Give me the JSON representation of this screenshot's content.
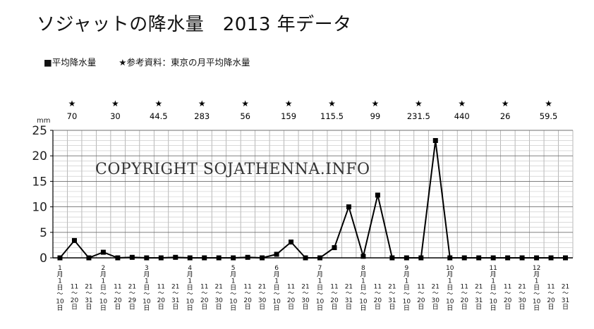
{
  "title": "ソジャットの降水量　2013 年データ",
  "legend": {
    "series_label": "■平均降水量",
    "reference_label": "★参考資料：東京の月平均降水量"
  },
  "watermark": "COPYRIGHT SOJATHENNA.INFO",
  "colors": {
    "line": "#000000",
    "grid": "#9a9a9a",
    "axis": "#000000"
  },
  "chart_data": {
    "type": "line",
    "ylabel": "mm",
    "ylim": [
      0,
      25
    ],
    "yticks": [
      0,
      5,
      10,
      15,
      20,
      25
    ],
    "grid": true,
    "x": [
      "1月1日～10日",
      "1月11日～20日",
      "1月21日～31日",
      "2月1日～10日",
      "2月11日～20日",
      "2月21日～29日",
      "3月1日～10日",
      "3月11日～20日",
      "3月21日～31日",
      "4月1日～10日",
      "4月11日～20日",
      "4月21日～30日",
      "5月1日～10日",
      "5月11日～20日",
      "5月21日～30日",
      "6月1日～10日",
      "6月11日～20日",
      "6月21日～30日",
      "7月1日～10日",
      "7月11日～20日",
      "7月21日～31日",
      "8月1日～10日",
      "8月11日～20日",
      "8月21日～31日",
      "9月1日～10日",
      "9月11日～20日",
      "9月21日～30日",
      "10月1日～10日",
      "10月11日～20日",
      "10月21日～31日",
      "11月1日～10日",
      "11月11日～20日",
      "11月21日～30日",
      "12月1日～10日",
      "12月11日～20日",
      "12月21日～31日"
    ],
    "tick_labels": [
      {
        "month": "1",
        "start": "1",
        "end": "10"
      },
      {
        "month": "",
        "start": "11",
        "end": "20"
      },
      {
        "month": "",
        "start": "21",
        "end": "31"
      },
      {
        "month": "2",
        "start": "1",
        "end": "10"
      },
      {
        "month": "",
        "start": "11",
        "end": "20"
      },
      {
        "month": "",
        "start": "21",
        "end": "29"
      },
      {
        "month": "3",
        "start": "1",
        "end": "10"
      },
      {
        "month": "",
        "start": "11",
        "end": "20"
      },
      {
        "month": "",
        "start": "21",
        "end": "31"
      },
      {
        "month": "4",
        "start": "1",
        "end": "10"
      },
      {
        "month": "",
        "start": "11",
        "end": "20"
      },
      {
        "month": "",
        "start": "21",
        "end": "30"
      },
      {
        "month": "5",
        "start": "1",
        "end": "10"
      },
      {
        "month": "",
        "start": "11",
        "end": "20"
      },
      {
        "month": "",
        "start": "21",
        "end": "30"
      },
      {
        "month": "6",
        "start": "1",
        "end": "10"
      },
      {
        "month": "",
        "start": "11",
        "end": "20"
      },
      {
        "month": "",
        "start": "21",
        "end": "30"
      },
      {
        "month": "7",
        "start": "1",
        "end": "10"
      },
      {
        "month": "",
        "start": "11",
        "end": "20"
      },
      {
        "month": "",
        "start": "21",
        "end": "31"
      },
      {
        "month": "8",
        "start": "1",
        "end": "10"
      },
      {
        "month": "",
        "start": "11",
        "end": "20"
      },
      {
        "month": "",
        "start": "21",
        "end": "31"
      },
      {
        "month": "9",
        "start": "1",
        "end": "10"
      },
      {
        "month": "",
        "start": "11",
        "end": "20"
      },
      {
        "month": "",
        "start": "21",
        "end": "30"
      },
      {
        "month": "10",
        "start": "1",
        "end": "10"
      },
      {
        "month": "",
        "start": "11",
        "end": "20"
      },
      {
        "month": "",
        "start": "21",
        "end": "31"
      },
      {
        "month": "11",
        "start": "1",
        "end": "10"
      },
      {
        "month": "",
        "start": "11",
        "end": "20"
      },
      {
        "month": "",
        "start": "21",
        "end": "30"
      },
      {
        "month": "12",
        "start": "1",
        "end": "10"
      },
      {
        "month": "",
        "start": "11",
        "end": "20"
      },
      {
        "month": "",
        "start": "21",
        "end": "31"
      }
    ],
    "series": [
      {
        "name": "平均降水量",
        "values": [
          0,
          3.4,
          0,
          1.1,
          0,
          0.1,
          0,
          0,
          0.1,
          0,
          0,
          0,
          0,
          0.1,
          0,
          0.7,
          3.1,
          0,
          0,
          2,
          10,
          0.3,
          12.3,
          0,
          0,
          0,
          23,
          0,
          0,
          0,
          0,
          0,
          0,
          0,
          0,
          0
        ]
      }
    ],
    "reference_marker": "★",
    "reference_values": [
      {
        "month": "1",
        "value": "70"
      },
      {
        "month": "2",
        "value": "30"
      },
      {
        "month": "3",
        "value": "44.5"
      },
      {
        "month": "4",
        "value": "283"
      },
      {
        "month": "5",
        "value": "56"
      },
      {
        "month": "6",
        "value": "159"
      },
      {
        "month": "7",
        "value": "115.5"
      },
      {
        "month": "8",
        "value": "99"
      },
      {
        "month": "9",
        "value": "231.5"
      },
      {
        "month": "10",
        "value": "440"
      },
      {
        "month": "11",
        "value": "26"
      },
      {
        "month": "12",
        "value": "59.5"
      }
    ]
  }
}
